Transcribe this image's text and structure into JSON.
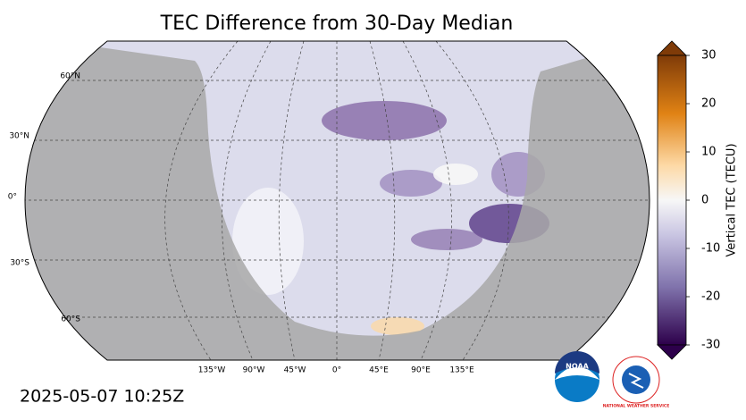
{
  "title": "TEC Difference from 30-Day Median",
  "colorbar": {
    "label": "Vertical TEC (TECU)",
    "lim": [
      -30,
      30
    ],
    "ticks": [
      -30,
      -20,
      -10,
      0,
      10,
      20,
      30
    ]
  },
  "latitude_labels": [
    "60°N",
    "30°N",
    "0°",
    "30°S",
    "60°S"
  ],
  "longitude_labels": [
    "135°W",
    "90°W",
    "45°W",
    "0°",
    "45°E",
    "90°E",
    "135°E"
  ],
  "timestamp": "2025-05-07 10:25Z",
  "logos": {
    "noaa": "NOAA",
    "nws": "NATIONAL WEATHER SERVICE"
  }
}
